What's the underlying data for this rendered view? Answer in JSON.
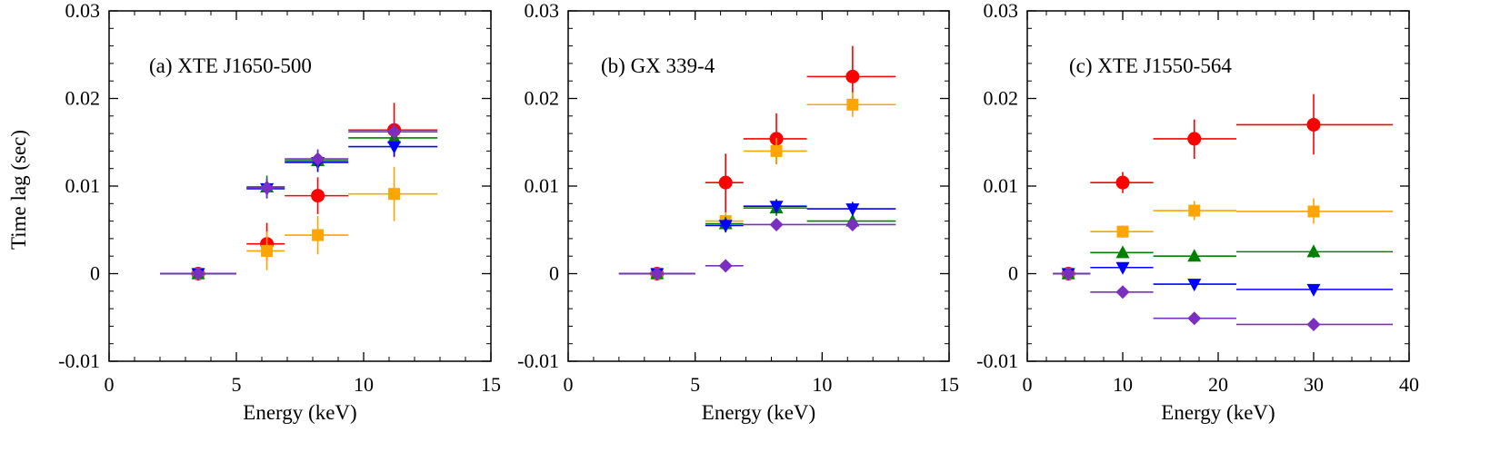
{
  "figure": {
    "ylabel": "Time lag (sec)",
    "xlabel": "Energy (keV)"
  },
  "series_styles": [
    {
      "name": "red",
      "color": "#ff0000",
      "marker": "circle"
    },
    {
      "name": "orange",
      "color": "#ffa500",
      "marker": "square"
    },
    {
      "name": "green",
      "color": "#008000",
      "marker": "triangle-up"
    },
    {
      "name": "blue",
      "color": "#0000ff",
      "marker": "triangle-down"
    },
    {
      "name": "purple",
      "color": "#7b2fbf",
      "marker": "diamond"
    }
  ],
  "chart_data": [
    {
      "type": "scatter",
      "title": "(a) XTE J1650-500",
      "xlabel": "Energy (keV)",
      "ylabel": "Time lag (sec)",
      "xlim": [
        0,
        15
      ],
      "ylim": [
        -0.01,
        0.03
      ],
      "xticks": [
        0,
        5,
        10,
        15
      ],
      "xtick_labels": [
        "0",
        "5",
        "10",
        "15"
      ],
      "yticks": [
        -0.01,
        0,
        0.01,
        0.02,
        0.03
      ],
      "ytick_labels": [
        "-0.01",
        "0",
        "0.01",
        "0.02",
        "0.03"
      ],
      "series": [
        {
          "name": "red",
          "points": [
            {
              "x": 3.5,
              "xlo": 2.0,
              "xhi": 5.0,
              "y": 0.0,
              "ylo": 0.0,
              "yhi": 0.0
            },
            {
              "x": 6.2,
              "xlo": 5.4,
              "xhi": 6.9,
              "y": 0.0034,
              "ylo": 0.0015,
              "yhi": 0.0058
            },
            {
              "x": 8.2,
              "xlo": 6.9,
              "xhi": 9.4,
              "y": 0.0089,
              "ylo": 0.0068,
              "yhi": 0.011
            },
            {
              "x": 11.2,
              "xlo": 9.4,
              "xhi": 12.9,
              "y": 0.0164,
              "ylo": 0.0133,
              "yhi": 0.0195
            }
          ]
        },
        {
          "name": "orange",
          "points": [
            {
              "x": 3.5,
              "xlo": 2.0,
              "xhi": 5.0,
              "y": 0.0,
              "ylo": 0.0,
              "yhi": 0.0
            },
            {
              "x": 6.2,
              "xlo": 5.4,
              "xhi": 6.9,
              "y": 0.0026,
              "ylo": 0.0004,
              "yhi": 0.0048
            },
            {
              "x": 8.2,
              "xlo": 6.9,
              "xhi": 9.4,
              "y": 0.0044,
              "ylo": 0.0022,
              "yhi": 0.0066
            },
            {
              "x": 11.2,
              "xlo": 9.4,
              "xhi": 12.9,
              "y": 0.0091,
              "ylo": 0.006,
              "yhi": 0.0122
            }
          ]
        },
        {
          "name": "green",
          "points": [
            {
              "x": 3.5,
              "xlo": 2.0,
              "xhi": 5.0,
              "y": 0.0,
              "ylo": 0.0,
              "yhi": 0.0
            },
            {
              "x": 6.2,
              "xlo": 5.4,
              "xhi": 6.9,
              "y": 0.0099,
              "ylo": 0.0086,
              "yhi": 0.0112
            },
            {
              "x": 8.2,
              "xlo": 6.9,
              "xhi": 9.4,
              "y": 0.0129,
              "ylo": 0.0117,
              "yhi": 0.0141
            },
            {
              "x": 11.2,
              "xlo": 9.4,
              "xhi": 12.9,
              "y": 0.0155,
              "ylo": 0.0143,
              "yhi": 0.0167
            }
          ]
        },
        {
          "name": "blue",
          "points": [
            {
              "x": 3.5,
              "xlo": 2.0,
              "xhi": 5.0,
              "y": 0.0,
              "ylo": 0.0,
              "yhi": 0.0
            },
            {
              "x": 6.2,
              "xlo": 5.4,
              "xhi": 6.9,
              "y": 0.0097,
              "ylo": 0.0086,
              "yhi": 0.0108
            },
            {
              "x": 8.2,
              "xlo": 6.9,
              "xhi": 9.4,
              "y": 0.0127,
              "ylo": 0.0116,
              "yhi": 0.0138
            },
            {
              "x": 11.2,
              "xlo": 9.4,
              "xhi": 12.9,
              "y": 0.0145,
              "ylo": 0.0134,
              "yhi": 0.0156
            }
          ]
        },
        {
          "name": "purple",
          "points": [
            {
              "x": 3.5,
              "xlo": 2.0,
              "xhi": 5.0,
              "y": 0.0,
              "ylo": 0.0,
              "yhi": 0.0
            },
            {
              "x": 6.2,
              "xlo": 5.4,
              "xhi": 6.9,
              "y": 0.0098,
              "ylo": 0.0087,
              "yhi": 0.0109
            },
            {
              "x": 8.2,
              "xlo": 6.9,
              "xhi": 9.4,
              "y": 0.0131,
              "ylo": 0.012,
              "yhi": 0.0142
            },
            {
              "x": 11.2,
              "xlo": 9.4,
              "xhi": 12.9,
              "y": 0.0162,
              "ylo": 0.0151,
              "yhi": 0.0173
            }
          ]
        }
      ]
    },
    {
      "type": "scatter",
      "title": "(b) GX 339-4",
      "xlabel": "Energy (keV)",
      "ylabel": "",
      "xlim": [
        0,
        15
      ],
      "ylim": [
        -0.01,
        0.03
      ],
      "xticks": [
        0,
        5,
        10,
        15
      ],
      "xtick_labels": [
        "0",
        "5",
        "10",
        "15"
      ],
      "yticks": [
        -0.01,
        0,
        0.01,
        0.02,
        0.03
      ],
      "ytick_labels": [
        "-0.01",
        "0",
        "0.01",
        "0.02",
        "0.03"
      ],
      "series": [
        {
          "name": "red",
          "points": [
            {
              "x": 3.5,
              "xlo": 2.0,
              "xhi": 5.0,
              "y": 0.0,
              "ylo": 0.0,
              "yhi": 0.0
            },
            {
              "x": 6.2,
              "xlo": 5.4,
              "xhi": 6.9,
              "y": 0.0104,
              "ylo": 0.007,
              "yhi": 0.0137
            },
            {
              "x": 8.2,
              "xlo": 6.9,
              "xhi": 9.4,
              "y": 0.0154,
              "ylo": 0.0125,
              "yhi": 0.0183
            },
            {
              "x": 11.2,
              "xlo": 9.4,
              "xhi": 12.9,
              "y": 0.0225,
              "ylo": 0.019,
              "yhi": 0.026
            }
          ]
        },
        {
          "name": "orange",
          "points": [
            {
              "x": 3.5,
              "xlo": 2.0,
              "xhi": 5.0,
              "y": 0.0,
              "ylo": 0.0,
              "yhi": 0.0
            },
            {
              "x": 6.2,
              "xlo": 5.4,
              "xhi": 6.9,
              "y": 0.006,
              "ylo": 0.005,
              "yhi": 0.007
            },
            {
              "x": 8.2,
              "xlo": 6.9,
              "xhi": 9.4,
              "y": 0.014,
              "ylo": 0.0125,
              "yhi": 0.0155
            },
            {
              "x": 11.2,
              "xlo": 9.4,
              "xhi": 12.9,
              "y": 0.0193,
              "ylo": 0.0179,
              "yhi": 0.0207
            }
          ]
        },
        {
          "name": "green",
          "points": [
            {
              "x": 3.5,
              "xlo": 2.0,
              "xhi": 5.0,
              "y": 0.0,
              "ylo": 0.0,
              "yhi": 0.0
            },
            {
              "x": 6.2,
              "xlo": 5.4,
              "xhi": 6.9,
              "y": 0.0057,
              "ylo": 0.0049,
              "yhi": 0.0065
            },
            {
              "x": 8.2,
              "xlo": 6.9,
              "xhi": 9.4,
              "y": 0.0075,
              "ylo": 0.0066,
              "yhi": 0.0084
            },
            {
              "x": 11.2,
              "xlo": 9.4,
              "xhi": 12.9,
              "y": 0.006,
              "ylo": 0.0052,
              "yhi": 0.0068
            }
          ]
        },
        {
          "name": "blue",
          "points": [
            {
              "x": 3.5,
              "xlo": 2.0,
              "xhi": 5.0,
              "y": 0.0,
              "ylo": 0.0,
              "yhi": 0.0
            },
            {
              "x": 6.2,
              "xlo": 5.4,
              "xhi": 6.9,
              "y": 0.0055,
              "ylo": 0.0047,
              "yhi": 0.0063
            },
            {
              "x": 8.2,
              "xlo": 6.9,
              "xhi": 9.4,
              "y": 0.0077,
              "ylo": 0.0069,
              "yhi": 0.0085
            },
            {
              "x": 11.2,
              "xlo": 9.4,
              "xhi": 12.9,
              "y": 0.0074,
              "ylo": 0.0066,
              "yhi": 0.0082
            }
          ]
        },
        {
          "name": "purple",
          "points": [
            {
              "x": 3.5,
              "xlo": 2.0,
              "xhi": 5.0,
              "y": 0.0,
              "ylo": 0.0,
              "yhi": 0.0
            },
            {
              "x": 6.2,
              "xlo": 5.4,
              "xhi": 6.9,
              "y": 0.0009,
              "ylo": 0.0004,
              "yhi": 0.0014
            },
            {
              "x": 8.2,
              "xlo": 6.9,
              "xhi": 9.4,
              "y": 0.0056,
              "ylo": 0.0051,
              "yhi": 0.0061
            },
            {
              "x": 11.2,
              "xlo": 9.4,
              "xhi": 12.9,
              "y": 0.0056,
              "ylo": 0.0051,
              "yhi": 0.0061
            }
          ]
        }
      ]
    },
    {
      "type": "scatter",
      "title": "(c) XTE J1550-564",
      "xlabel": "Energy (keV)",
      "ylabel": "",
      "xlim": [
        0,
        40
      ],
      "ylim": [
        -0.01,
        0.03
      ],
      "xticks": [
        0,
        10,
        20,
        30,
        40
      ],
      "xtick_labels": [
        "0",
        "10",
        "20",
        "30",
        "40"
      ],
      "yticks": [
        -0.01,
        0,
        0.01,
        0.02,
        0.03
      ],
      "ytick_labels": [
        "-0.01",
        "0",
        "0.01",
        "0.02",
        "0.03"
      ],
      "series": [
        {
          "name": "red",
          "points": [
            {
              "x": 4.3,
              "xlo": 2.7,
              "xhi": 6.6,
              "y": 0.0,
              "ylo": 0.0,
              "yhi": 0.0
            },
            {
              "x": 10.0,
              "xlo": 6.6,
              "xhi": 13.2,
              "y": 0.0104,
              "ylo": 0.0092,
              "yhi": 0.0116
            },
            {
              "x": 17.5,
              "xlo": 13.2,
              "xhi": 21.9,
              "y": 0.0154,
              "ylo": 0.0131,
              "yhi": 0.0176
            },
            {
              "x": 30.0,
              "xlo": 21.9,
              "xhi": 38.3,
              "y": 0.017,
              "ylo": 0.0136,
              "yhi": 0.0205
            }
          ]
        },
        {
          "name": "orange",
          "points": [
            {
              "x": 4.3,
              "xlo": 2.7,
              "xhi": 6.6,
              "y": 0.0,
              "ylo": 0.0,
              "yhi": 0.0
            },
            {
              "x": 10.0,
              "xlo": 6.6,
              "xhi": 13.2,
              "y": 0.0048,
              "ylo": 0.0041,
              "yhi": 0.0055
            },
            {
              "x": 17.5,
              "xlo": 13.2,
              "xhi": 21.9,
              "y": 0.0072,
              "ylo": 0.0061,
              "yhi": 0.0083
            },
            {
              "x": 30.0,
              "xlo": 21.9,
              "xhi": 38.3,
              "y": 0.0071,
              "ylo": 0.0057,
              "yhi": 0.0086
            }
          ]
        },
        {
          "name": "green",
          "points": [
            {
              "x": 4.3,
              "xlo": 2.7,
              "xhi": 6.6,
              "y": 0.0,
              "ylo": 0.0,
              "yhi": 0.0
            },
            {
              "x": 10.0,
              "xlo": 6.6,
              "xhi": 13.2,
              "y": 0.0024,
              "ylo": 0.0018,
              "yhi": 0.003
            },
            {
              "x": 17.5,
              "xlo": 13.2,
              "xhi": 21.9,
              "y": 0.002,
              "ylo": 0.0014,
              "yhi": 0.0026
            },
            {
              "x": 30.0,
              "xlo": 21.9,
              "xhi": 38.3,
              "y": 0.0025,
              "ylo": 0.0018,
              "yhi": 0.0032
            }
          ]
        },
        {
          "name": "blue",
          "points": [
            {
              "x": 4.3,
              "xlo": 2.7,
              "xhi": 6.6,
              "y": 0.0,
              "ylo": 0.0,
              "yhi": 0.0
            },
            {
              "x": 10.0,
              "xlo": 6.6,
              "xhi": 13.2,
              "y": 0.0007,
              "ylo": 0.0002,
              "yhi": 0.0012
            },
            {
              "x": 17.5,
              "xlo": 13.2,
              "xhi": 21.9,
              "y": -0.0012,
              "ylo": -0.0017,
              "yhi": -0.0007
            },
            {
              "x": 30.0,
              "xlo": 21.9,
              "xhi": 38.3,
              "y": -0.0018,
              "ylo": -0.0023,
              "yhi": -0.0013
            }
          ]
        },
        {
          "name": "purple",
          "points": [
            {
              "x": 4.3,
              "xlo": 2.7,
              "xhi": 6.6,
              "y": 0.0,
              "ylo": 0.0,
              "yhi": 0.0
            },
            {
              "x": 10.0,
              "xlo": 6.6,
              "xhi": 13.2,
              "y": -0.0021,
              "ylo": -0.0024,
              "yhi": -0.0018
            },
            {
              "x": 17.5,
              "xlo": 13.2,
              "xhi": 21.9,
              "y": -0.0051,
              "ylo": -0.0054,
              "yhi": -0.0048
            },
            {
              "x": 30.0,
              "xlo": 21.9,
              "xhi": 38.3,
              "y": -0.0058,
              "ylo": -0.0061,
              "yhi": -0.0055
            }
          ]
        }
      ]
    }
  ]
}
